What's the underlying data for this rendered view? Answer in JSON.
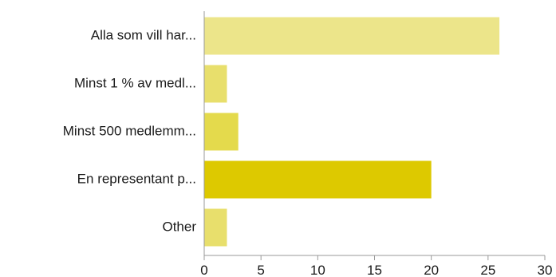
{
  "chart_data": {
    "type": "bar",
    "orientation": "horizontal",
    "categories": [
      "Alla som vill har...",
      "Minst 1 % av medl...",
      "Minst 500 medlemm...",
      "En representant p...",
      "Other"
    ],
    "values": [
      26,
      2,
      3,
      20,
      2
    ],
    "bar_colors": [
      "#ece58a",
      "#e8df6c",
      "#e4da4c",
      "#ddc900",
      "#e8df6c"
    ],
    "xlim": [
      0,
      30
    ],
    "xticks": [
      0,
      5,
      10,
      15,
      20,
      25,
      30
    ],
    "title": "",
    "xlabel": "",
    "ylabel": "",
    "grid": false,
    "legend": "none"
  }
}
